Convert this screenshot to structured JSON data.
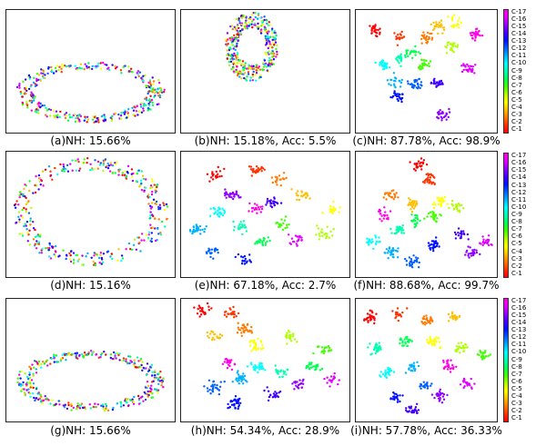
{
  "chart_data": [
    {
      "id": "a",
      "type": "scatter",
      "caption": "(a)NH: 15.66%",
      "shape": "ring"
    },
    {
      "id": "b",
      "type": "scatter",
      "caption": "(b)NH: 15.18%, Acc: 5.5%",
      "shape": "small-ring"
    },
    {
      "id": "c",
      "type": "scatter",
      "caption": "(c)NH: 87.78%, Acc: 98.9%",
      "shape": "clusters"
    },
    {
      "id": "d",
      "type": "scatter",
      "caption": "(d)NH: 15.16%",
      "shape": "big-ring"
    },
    {
      "id": "e",
      "type": "scatter",
      "caption": "(e)NH: 67.18%, Acc: 2.7%",
      "shape": "clusters"
    },
    {
      "id": "f",
      "type": "scatter",
      "caption": "(f)NH: 88.68%, Acc: 99.7%",
      "shape": "clusters"
    },
    {
      "id": "g",
      "type": "scatter",
      "caption": "(g)NH: 15.66%",
      "shape": "ring"
    },
    {
      "id": "h",
      "type": "scatter",
      "caption": "(h)NH: 54.34%, Acc: 28.9%",
      "shape": "clusters"
    },
    {
      "id": "i",
      "type": "scatter",
      "caption": "(i)NH: 57.78%, Acc: 36.33%",
      "shape": "clusters"
    }
  ],
  "legend": {
    "labels": [
      "C-17",
      "C-16",
      "C-15",
      "C-14",
      "C-13",
      "C-12",
      "C-11",
      "C-10",
      "C-9",
      "C-8",
      "C-7",
      "C-6",
      "C-5",
      "C-4",
      "C-3",
      "C-2",
      "C-1"
    ]
  },
  "colors": [
    "#ff0000",
    "#ff3300",
    "#ff7a00",
    "#ffbf00",
    "#ffff00",
    "#b0ff00",
    "#40ff00",
    "#00ff50",
    "#00ffb0",
    "#00ffff",
    "#00b0ff",
    "#0060ff",
    "#0010ff",
    "#4000ff",
    "#9000ff",
    "#e000ff",
    "#ff00e6"
  ]
}
